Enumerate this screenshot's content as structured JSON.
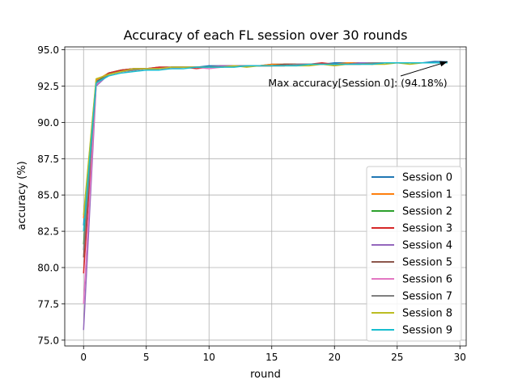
{
  "chart_data": {
    "type": "line",
    "title": "Accuracy of each FL session over 30 rounds",
    "xlabel": "round",
    "ylabel": "accuracy (%)",
    "xlim": [
      -1.5,
      30.5
    ],
    "ylim": [
      74.6,
      95.2
    ],
    "xticks": [
      0,
      5,
      10,
      15,
      20,
      25,
      30
    ],
    "yticks": [
      75.0,
      77.5,
      80.0,
      82.5,
      85.0,
      87.5,
      90.0,
      92.5,
      95.0
    ],
    "xtick_labels": [
      "0",
      "5",
      "10",
      "15",
      "20",
      "25",
      "30"
    ],
    "ytick_labels": [
      "75.0",
      "77.5",
      "80.0",
      "82.5",
      "85.0",
      "87.5",
      "90.0",
      "92.5",
      "95.0"
    ],
    "grid": true,
    "legend_position": "lower-right",
    "annotation": {
      "text": "Max accuracy[Session 0]: (94.18%)",
      "arrow_target": [
        29,
        94.18
      ]
    },
    "x": [
      0,
      1,
      2,
      3,
      4,
      5,
      6,
      7,
      8,
      9,
      10,
      11,
      12,
      13,
      14,
      15,
      16,
      17,
      18,
      19,
      20,
      21,
      22,
      23,
      24,
      25,
      26,
      27,
      28,
      29
    ],
    "series": [
      {
        "name": "Session 0",
        "color": "#1f77b4",
        "values": [
          82.9,
          92.8,
          93.4,
          93.6,
          93.7,
          93.7,
          93.8,
          93.8,
          93.8,
          93.8,
          93.9,
          93.9,
          93.9,
          93.9,
          93.9,
          94.0,
          94.0,
          94.0,
          94.0,
          94.0,
          94.1,
          94.1,
          94.1,
          94.1,
          94.1,
          94.1,
          94.1,
          94.1,
          94.2,
          94.18
        ]
      },
      {
        "name": "Session 1",
        "color": "#ff7f0e",
        "values": [
          83.4,
          92.9,
          93.4,
          93.6,
          93.7,
          93.7,
          93.8,
          93.8,
          93.8,
          93.8,
          93.8,
          93.9,
          93.9,
          93.9,
          93.9,
          94.0,
          94.0,
          94.0,
          94.0,
          94.0,
          94.0,
          94.1,
          94.1,
          94.1,
          94.1,
          94.1,
          94.1,
          94.1,
          94.1,
          94.1
        ]
      },
      {
        "name": "Session 2",
        "color": "#2ca02c",
        "values": [
          81.6,
          92.7,
          93.4,
          93.6,
          93.7,
          93.7,
          93.7,
          93.8,
          93.8,
          93.8,
          93.8,
          93.9,
          93.9,
          93.9,
          93.9,
          93.9,
          94.0,
          94.0,
          94.0,
          94.0,
          94.0,
          94.0,
          94.1,
          94.1,
          94.1,
          94.1,
          94.1,
          94.1,
          94.1,
          94.1
        ]
      },
      {
        "name": "Session 3",
        "color": "#d62728",
        "values": [
          79.6,
          92.6,
          93.4,
          93.6,
          93.7,
          93.7,
          93.8,
          93.8,
          93.8,
          93.7,
          93.8,
          93.9,
          93.9,
          93.9,
          93.9,
          93.9,
          94.0,
          94.0,
          94.0,
          94.1,
          94.0,
          94.0,
          94.1,
          94.0,
          94.1,
          94.1,
          94.1,
          94.1,
          94.1,
          94.1
        ]
      },
      {
        "name": "Session 4",
        "color": "#9467bd",
        "values": [
          75.7,
          92.5,
          93.3,
          93.5,
          93.6,
          93.7,
          93.7,
          93.8,
          93.8,
          93.8,
          93.8,
          93.9,
          93.9,
          93.9,
          93.9,
          93.9,
          93.9,
          94.0,
          94.0,
          94.0,
          94.0,
          94.0,
          94.1,
          94.1,
          94.1,
          94.1,
          94.1,
          94.1,
          94.1,
          94.1
        ]
      },
      {
        "name": "Session 5",
        "color": "#8c564b",
        "values": [
          80.7,
          92.7,
          93.3,
          93.5,
          93.6,
          93.7,
          93.7,
          93.8,
          93.8,
          93.8,
          93.8,
          93.8,
          93.9,
          93.9,
          93.9,
          93.9,
          94.0,
          94.0,
          94.0,
          94.0,
          94.0,
          94.0,
          94.0,
          94.1,
          94.1,
          94.1,
          94.1,
          94.1,
          94.1,
          94.1
        ]
      },
      {
        "name": "Session 6",
        "color": "#e377c2",
        "values": [
          77.5,
          92.6,
          93.3,
          93.5,
          93.6,
          93.7,
          93.7,
          93.7,
          93.8,
          93.8,
          93.7,
          93.8,
          93.9,
          93.9,
          93.9,
          93.9,
          93.9,
          94.0,
          94.0,
          94.0,
          94.0,
          94.0,
          94.0,
          94.1,
          94.1,
          94.1,
          94.1,
          94.1,
          94.1,
          94.1
        ]
      },
      {
        "name": "Session 7",
        "color": "#7f7f7f",
        "values": [
          81.2,
          92.7,
          93.3,
          93.5,
          93.6,
          93.7,
          93.7,
          93.8,
          93.8,
          93.8,
          93.8,
          93.8,
          93.9,
          93.9,
          93.9,
          93.9,
          93.9,
          94.0,
          94.0,
          94.0,
          94.0,
          94.0,
          94.0,
          94.1,
          94.1,
          94.1,
          94.1,
          94.1,
          94.1,
          94.1
        ]
      },
      {
        "name": "Session 8",
        "color": "#bcbd22",
        "values": [
          83.6,
          93.0,
          93.3,
          93.5,
          93.7,
          93.7,
          93.7,
          93.8,
          93.8,
          93.8,
          93.8,
          93.8,
          93.9,
          93.8,
          93.9,
          93.9,
          93.9,
          93.9,
          93.9,
          94.0,
          93.9,
          94.0,
          94.0,
          94.0,
          94.0,
          94.1,
          94.0,
          94.1,
          94.1,
          94.1
        ]
      },
      {
        "name": "Session 9",
        "color": "#17becf",
        "values": [
          82.5,
          92.7,
          93.2,
          93.4,
          93.5,
          93.6,
          93.6,
          93.7,
          93.7,
          93.8,
          93.8,
          93.8,
          93.8,
          93.9,
          93.9,
          93.9,
          93.9,
          93.9,
          94.0,
          94.0,
          94.0,
          94.0,
          94.0,
          94.0,
          94.1,
          94.1,
          94.1,
          94.1,
          94.1,
          94.1
        ]
      }
    ]
  }
}
